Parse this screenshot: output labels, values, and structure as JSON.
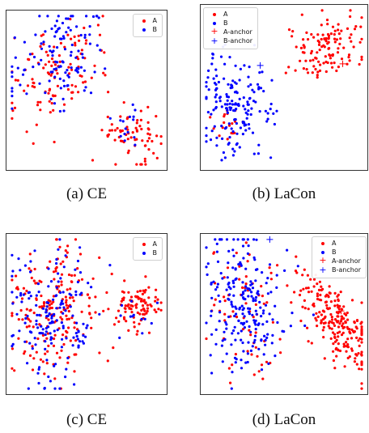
{
  "captions": [
    "(a) CE",
    "(b) LaCon",
    "(c) CE",
    "(d) LaCon"
  ],
  "colors": {
    "A": "#ff0000",
    "B": "#0000ff",
    "frame": "#333333"
  },
  "chart_data": [
    {
      "type": "scatter",
      "xlim": [
        0,
        1
      ],
      "ylim": [
        0,
        1
      ],
      "legend": {
        "placement": "top-right",
        "entries": [
          "A",
          "B"
        ]
      },
      "series": [
        {
          "name": "A",
          "clusters": [
            {
              "cx": 0.32,
              "cy": 0.63,
              "sx": 0.15,
              "sy": 0.19,
              "n": 110,
              "rot": -0.5
            },
            {
              "cx": 0.8,
              "cy": 0.2,
              "sx": 0.1,
              "sy": 0.08,
              "n": 70,
              "rot": 0
            }
          ]
        },
        {
          "name": "B",
          "clusters": [
            {
              "cx": 0.3,
              "cy": 0.7,
              "sx": 0.14,
              "sy": 0.18,
              "n": 120,
              "rot": -0.5
            },
            {
              "cx": 0.8,
              "cy": 0.28,
              "sx": 0.09,
              "sy": 0.07,
              "n": 15,
              "rot": 0
            }
          ]
        }
      ]
    },
    {
      "type": "scatter",
      "xlim": [
        0,
        1
      ],
      "ylim": [
        0,
        1
      ],
      "legend": {
        "placement": "top-left",
        "entries": [
          "A",
          "B",
          "A-anchor",
          "B-anchor"
        ]
      },
      "series": [
        {
          "name": "A",
          "clusters": [
            {
              "cx": 0.78,
              "cy": 0.75,
              "sx": 0.13,
              "sy": 0.1,
              "n": 120,
              "rot": 0.45
            },
            {
              "cx": 0.15,
              "cy": 0.25,
              "sx": 0.05,
              "sy": 0.05,
              "n": 18,
              "rot": 0
            }
          ]
        },
        {
          "name": "B",
          "clusters": [
            {
              "cx": 0.2,
              "cy": 0.4,
              "sx": 0.1,
              "sy": 0.18,
              "n": 170,
              "rot": 0.15
            }
          ]
        },
        {
          "name": "A-anchor",
          "marker": "+",
          "points": [
            [
              0.87,
              0.65
            ]
          ]
        },
        {
          "name": "B-anchor",
          "marker": "+",
          "points": [
            [
              0.35,
              0.64
            ]
          ]
        }
      ]
    },
    {
      "type": "scatter",
      "xlim": [
        0,
        1
      ],
      "ylim": [
        0,
        1
      ],
      "legend": {
        "placement": "top-right",
        "entries": [
          "A",
          "B"
        ]
      },
      "series": [
        {
          "name": "A",
          "clusters": [
            {
              "cx": 0.27,
              "cy": 0.5,
              "sx": 0.14,
              "sy": 0.22,
              "n": 200,
              "rot": 0
            },
            {
              "cx": 0.83,
              "cy": 0.55,
              "sx": 0.08,
              "sy": 0.08,
              "n": 90,
              "rot": 0
            }
          ]
        },
        {
          "name": "B",
          "clusters": [
            {
              "cx": 0.26,
              "cy": 0.48,
              "sx": 0.15,
              "sy": 0.23,
              "n": 170,
              "rot": 0
            },
            {
              "cx": 0.8,
              "cy": 0.52,
              "sx": 0.08,
              "sy": 0.08,
              "n": 12,
              "rot": 0
            }
          ]
        }
      ]
    },
    {
      "type": "scatter",
      "xlim": [
        0,
        1
      ],
      "ylim": [
        0,
        1
      ],
      "legend": {
        "placement": "top-right",
        "entries": [
          "A",
          "B",
          "A-anchor",
          "B-anchor"
        ]
      },
      "series": [
        {
          "name": "A",
          "clusters": [
            {
              "cx": 0.83,
              "cy": 0.45,
              "sx": 0.08,
              "sy": 0.2,
              "n": 220,
              "rot": 0.6
            },
            {
              "cx": 0.25,
              "cy": 0.55,
              "sx": 0.12,
              "sy": 0.22,
              "n": 70,
              "rot": 0.1
            }
          ]
        },
        {
          "name": "B",
          "clusters": [
            {
              "cx": 0.25,
              "cy": 0.55,
              "sx": 0.12,
              "sy": 0.24,
              "n": 220,
              "rot": 0.1
            }
          ]
        },
        {
          "name": "A-anchor",
          "marker": "+",
          "points": [
            [
              0.86,
              0.52
            ]
          ]
        },
        {
          "name": "B-anchor",
          "marker": "+",
          "points": [
            [
              0.41,
              0.99
            ]
          ]
        }
      ]
    }
  ]
}
